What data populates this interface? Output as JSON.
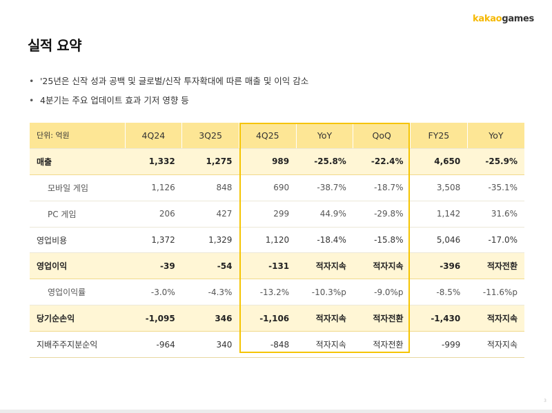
{
  "logo": {
    "part1": "kakao",
    "part2": "games"
  },
  "title": "실적 요약",
  "bullets": [
    "'25년은 신작 성과 공백 및 글로벌/신작 투자확대에 따른 매출 및 이익 감소",
    "4분기는 주요 업데이트 효과 기저 영향 등"
  ],
  "table": {
    "headers": [
      "단위: 억원",
      "4Q24",
      "3Q25",
      "4Q25",
      "YoY",
      "QoQ",
      "FY25",
      "YoY"
    ],
    "rows": [
      {
        "label": "매출",
        "style": "hl",
        "values": [
          "1,332",
          "1,275",
          "989",
          "-25.8%",
          "-22.4%",
          "4,650",
          "-25.9%"
        ]
      },
      {
        "label": "모바일 게임",
        "style": "sub",
        "values": [
          "1,126",
          "848",
          "690",
          "-38.7%",
          "-18.7%",
          "3,508",
          "-35.1%"
        ]
      },
      {
        "label": "PC 게임",
        "style": "sub",
        "values": [
          "206",
          "427",
          "299",
          "44.9%",
          "-29.8%",
          "1,142",
          "31.6%"
        ]
      },
      {
        "label": "영업비용",
        "style": "plain",
        "values": [
          "1,372",
          "1,329",
          "1,120",
          "-18.4%",
          "-15.8%",
          "5,046",
          "-17.0%"
        ]
      },
      {
        "label": "영업이익",
        "style": "hl",
        "values": [
          "-39",
          "-54",
          "-131",
          "적자지속",
          "적자지속",
          "-396",
          "적자전환"
        ]
      },
      {
        "label": "영업이익률",
        "style": "sub",
        "values": [
          "-3.0%",
          "-4.3%",
          "-13.2%",
          "-10.3%p",
          "-9.0%p",
          "-8.5%",
          "-11.6%p"
        ]
      },
      {
        "label": "당기순손익",
        "style": "hl",
        "values": [
          "-1,095",
          "346",
          "-1,106",
          "적자지속",
          "적자전환",
          "-1,430",
          "적자지속"
        ]
      },
      {
        "label": "지배주주지분순익",
        "style": "plain",
        "values": [
          "-964",
          "340",
          "-848",
          "적자지속",
          "적자전환",
          "-999",
          "적자지속"
        ]
      }
    ]
  },
  "page_number": "3"
}
